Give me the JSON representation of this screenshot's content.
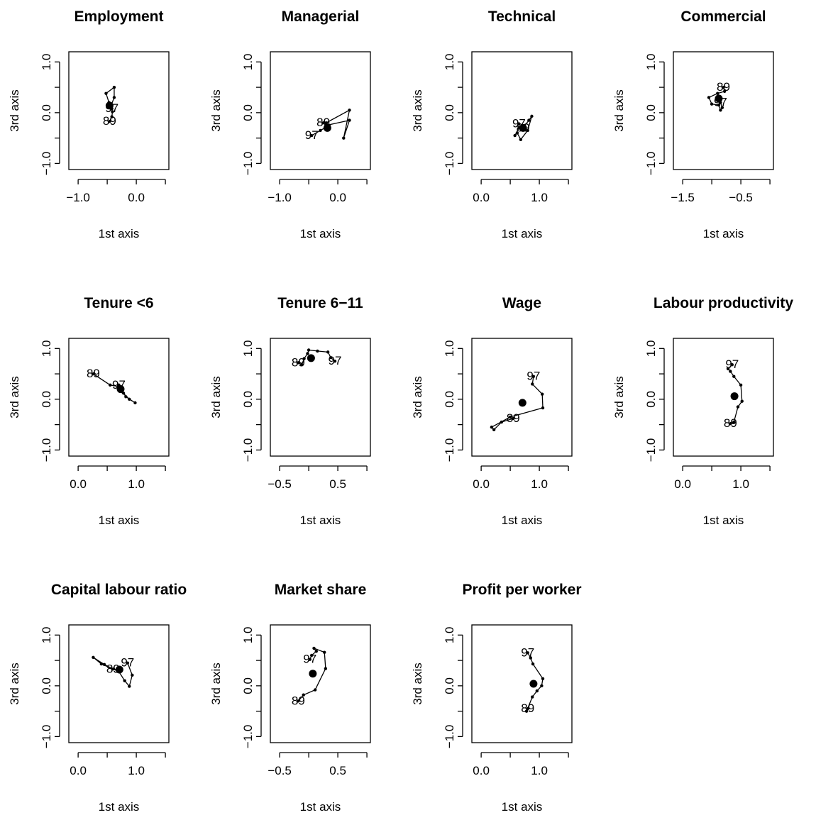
{
  "chart_data": [
    {
      "type": "line",
      "title": "Employment",
      "xlabel": "1st axis",
      "ylabel": "3rd axis",
      "x": [
        -0.46,
        -0.42,
        -0.41,
        -0.44,
        -0.38,
        -0.38,
        -0.52,
        -0.47,
        -0.42
      ],
      "y": [
        -0.17,
        -0.08,
        0.02,
        0.12,
        0.3,
        0.5,
        0.38,
        0.2,
        0.08
      ],
      "point_labels": [
        "89",
        null,
        null,
        null,
        null,
        null,
        null,
        null,
        "97"
      ],
      "centroid": {
        "x": -0.46,
        "y": 0.14
      },
      "xlim": [
        -1.16,
        0.56
      ],
      "ylim": [
        -1.12,
        1.2
      ],
      "xticks": [
        {
          "value": -1,
          "label": "−1.0"
        },
        {
          "value": 0,
          "label": "0.0"
        }
      ],
      "xminor": [
        -0.5,
        0.5
      ],
      "yticks": [
        {
          "value": -1,
          "label": "−1.0"
        },
        {
          "value": 0,
          "label": "0.0"
        },
        {
          "value": 1,
          "label": "1.0"
        }
      ],
      "yminor": [
        -0.5,
        0.5
      ]
    },
    {
      "type": "line",
      "title": "Managerial",
      "xlabel": "1st axis",
      "ylabel": "3rd axis",
      "x": [
        -0.25,
        -0.2,
        0.2,
        0.1,
        0.2,
        -0.2,
        -0.15,
        -0.3,
        -0.45
      ],
      "y": [
        -0.2,
        -0.25,
        -0.15,
        -0.5,
        0.05,
        -0.2,
        -0.25,
        -0.35,
        -0.45
      ],
      "point_labels": [
        "89",
        null,
        null,
        null,
        null,
        null,
        null,
        null,
        "97"
      ],
      "centroid": {
        "x": -0.18,
        "y": -0.3
      },
      "xlim": [
        -1.16,
        0.56
      ],
      "ylim": [
        -1.12,
        1.2
      ],
      "xticks": [
        {
          "value": -1,
          "label": "−1.0"
        },
        {
          "value": 0,
          "label": "0.0"
        }
      ],
      "xminor": [
        -0.5,
        0.5
      ],
      "yticks": [
        {
          "value": -1,
          "label": "−1.0"
        },
        {
          "value": 0,
          "label": "0.0"
        },
        {
          "value": 1,
          "label": "1.0"
        }
      ],
      "yminor": [
        -0.5,
        0.5
      ]
    },
    {
      "type": "line",
      "title": "Technical",
      "xlabel": "1st axis",
      "ylabel": "3rd axis",
      "x": [
        0.72,
        0.82,
        0.87,
        0.8,
        0.68,
        0.62,
        0.58,
        0.65,
        0.65
      ],
      "y": [
        -0.3,
        -0.15,
        -0.07,
        -0.35,
        -0.53,
        -0.4,
        -0.45,
        -0.3,
        -0.22
      ],
      "point_labels": [
        "89",
        null,
        null,
        null,
        null,
        null,
        null,
        null,
        "97"
      ],
      "centroid": {
        "x": 0.72,
        "y": -0.3
      },
      "xlim": [
        -0.16,
        1.56
      ],
      "ylim": [
        -1.12,
        1.2
      ],
      "xticks": [
        {
          "value": 0,
          "label": "0.0"
        },
        {
          "value": 1,
          "label": "1.0"
        }
      ],
      "xminor": [
        0.5,
        1.5
      ],
      "yticks": [
        {
          "value": -1,
          "label": "−1.0"
        },
        {
          "value": 0,
          "label": "0.0"
        },
        {
          "value": 1,
          "label": "1.0"
        }
      ],
      "yminor": [
        -0.5,
        0.5
      ]
    },
    {
      "type": "line",
      "title": "Commercial",
      "xlabel": "1st axis",
      "ylabel": "3rd axis",
      "x": [
        -0.8,
        -0.78,
        -0.9,
        -1.05,
        -1.0,
        -0.88,
        -0.85,
        -0.82,
        -0.85
      ],
      "y": [
        0.5,
        0.42,
        0.38,
        0.3,
        0.17,
        0.15,
        0.05,
        0.1,
        0.2
      ],
      "point_labels": [
        "89",
        null,
        null,
        null,
        null,
        null,
        null,
        null,
        "97"
      ],
      "centroid": {
        "x": -0.88,
        "y": 0.28
      },
      "xlim": [
        -1.66,
        0.06
      ],
      "ylim": [
        -1.12,
        1.2
      ],
      "xticks": [
        {
          "value": -1.5,
          "label": "−1.5"
        },
        {
          "value": -0.5,
          "label": "−0.5"
        }
      ],
      "xminor": [
        -1,
        0
      ],
      "yticks": [
        {
          "value": -1,
          "label": "−1.0"
        },
        {
          "value": 0,
          "label": "0.0"
        },
        {
          "value": 1,
          "label": "1.0"
        }
      ],
      "yminor": [
        -0.5,
        0.5
      ]
    },
    {
      "type": "line",
      "title": "Tenure <6",
      "xlabel": "1st axis",
      "ylabel": "3rd axis",
      "x": [
        0.26,
        0.55,
        0.7,
        0.78,
        0.82,
        0.98,
        0.88,
        0.75,
        0.7
      ],
      "y": [
        0.5,
        0.28,
        0.25,
        0.12,
        0.05,
        -0.07,
        0.0,
        0.15,
        0.28
      ],
      "point_labels": [
        "89",
        null,
        null,
        null,
        null,
        null,
        null,
        null,
        "97"
      ],
      "centroid": {
        "x": 0.73,
        "y": 0.2
      },
      "xlim": [
        -0.16,
        1.56
      ],
      "ylim": [
        -1.12,
        1.2
      ],
      "xticks": [
        {
          "value": 0,
          "label": "0.0"
        },
        {
          "value": 1,
          "label": "1.0"
        }
      ],
      "xminor": [
        0.5,
        1.5
      ],
      "yticks": [
        {
          "value": -1,
          "label": "−1.0"
        },
        {
          "value": 0,
          "label": "0.0"
        },
        {
          "value": 1,
          "label": "1.0"
        }
      ],
      "yminor": [
        -0.5,
        0.5
      ]
    },
    {
      "type": "line",
      "title": "Tenure 6−11",
      "xlabel": "1st axis",
      "ylabel": "3rd axis",
      "x": [
        -0.18,
        -0.12,
        -0.08,
        -0.02,
        0.0,
        0.15,
        0.33,
        0.38,
        0.45
      ],
      "y": [
        0.72,
        0.68,
        0.8,
        0.9,
        0.97,
        0.95,
        0.93,
        0.82,
        0.75
      ],
      "point_labels": [
        "89",
        null,
        null,
        null,
        null,
        null,
        null,
        null,
        "97"
      ],
      "centroid": {
        "x": 0.04,
        "y": 0.81
      },
      "xlim": [
        -0.66,
        1.06
      ],
      "ylim": [
        -1.12,
        1.2
      ],
      "xticks": [
        {
          "value": -0.5,
          "label": "−0.5"
        },
        0.5
      ],
      "xminor": [
        0,
        1
      ],
      "yticks": [
        {
          "value": -1,
          "label": "−1.0"
        },
        {
          "value": 0,
          "label": "0.0"
        },
        {
          "value": 1,
          "label": "1.0"
        }
      ],
      "yminor": [
        -0.5,
        0.5
      ]
    },
    {
      "type": "line",
      "title": "Wage",
      "xlabel": "1st axis",
      "ylabel": "3rd axis",
      "x": [
        0.55,
        0.35,
        0.22,
        0.18,
        0.5,
        1.06,
        1.05,
        0.88,
        0.9
      ],
      "y": [
        -0.38,
        -0.45,
        -0.6,
        -0.55,
        -0.35,
        -0.17,
        0.1,
        0.3,
        0.45
      ],
      "point_labels": [
        "89",
        null,
        null,
        null,
        null,
        null,
        null,
        null,
        "97"
      ],
      "centroid": {
        "x": 0.71,
        "y": -0.07
      },
      "xlim": [
        -0.16,
        1.56
      ],
      "ylim": [
        -1.12,
        1.2
      ],
      "xticks": [
        {
          "value": 0,
          "label": "0.0"
        },
        {
          "value": 1,
          "label": "1.0"
        }
      ],
      "xminor": [
        0.5,
        1.5
      ],
      "yticks": [
        {
          "value": -1,
          "label": "−1.0"
        },
        {
          "value": 0,
          "label": "0.0"
        },
        {
          "value": 1,
          "label": "1.0"
        }
      ],
      "yminor": [
        -0.5,
        0.5
      ]
    },
    {
      "type": "line",
      "title": "Labour productivity",
      "xlabel": "1st axis",
      "ylabel": "3rd axis",
      "x": [
        0.82,
        0.88,
        0.95,
        1.02,
        1.0,
        0.88,
        0.82,
        0.78,
        0.85
      ],
      "y": [
        -0.48,
        -0.45,
        -0.15,
        -0.04,
        0.28,
        0.45,
        0.55,
        0.6,
        0.68
      ],
      "point_labels": [
        "89",
        null,
        null,
        null,
        null,
        null,
        null,
        null,
        "97"
      ],
      "centroid": {
        "x": 0.89,
        "y": 0.06
      },
      "xlim": [
        -0.16,
        1.56
      ],
      "ylim": [
        -1.12,
        1.2
      ],
      "xticks": [
        {
          "value": 0,
          "label": "0.0"
        },
        {
          "value": 1,
          "label": "1.0"
        }
      ],
      "xminor": [
        0.5,
        1.5
      ],
      "yticks": [
        {
          "value": -1,
          "label": "−1.0"
        },
        {
          "value": 0,
          "label": "0.0"
        },
        {
          "value": 1,
          "label": "1.0"
        }
      ],
      "yminor": [
        -0.5,
        0.5
      ]
    },
    {
      "type": "line",
      "title": "Capital labour ratio",
      "xlabel": "1st axis",
      "ylabel": "3rd axis",
      "x": [
        0.6,
        0.45,
        0.26,
        0.4,
        0.7,
        0.8,
        0.88,
        0.93,
        0.85
      ],
      "y": [
        0.33,
        0.42,
        0.56,
        0.43,
        0.28,
        0.1,
        -0.01,
        0.21,
        0.45
      ],
      "point_labels": [
        "89",
        null,
        null,
        null,
        null,
        null,
        null,
        null,
        "97"
      ],
      "centroid": {
        "x": 0.71,
        "y": 0.32
      },
      "xlim": [
        -0.16,
        1.56
      ],
      "ylim": [
        -1.12,
        1.2
      ],
      "xticks": [
        {
          "value": 0,
          "label": "0.0"
        },
        {
          "value": 1,
          "label": "1.0"
        }
      ],
      "xminor": [
        0.5,
        1.5
      ],
      "yticks": [
        {
          "value": -1,
          "label": "−1.0"
        },
        {
          "value": 0,
          "label": "0.0"
        },
        {
          "value": 1,
          "label": "1.0"
        }
      ],
      "yminor": [
        -0.5,
        0.5
      ]
    },
    {
      "type": "line",
      "title": "Market share",
      "xlabel": "1st axis",
      "ylabel": "3rd axis",
      "x": [
        -0.18,
        -0.09,
        0.11,
        0.29,
        0.27,
        0.09,
        0.13,
        0.05,
        0.02
      ],
      "y": [
        -0.3,
        -0.18,
        -0.08,
        0.34,
        0.66,
        0.74,
        0.68,
        0.6,
        0.52
      ],
      "point_labels": [
        "89",
        null,
        null,
        null,
        null,
        null,
        null,
        null,
        "97"
      ],
      "centroid": {
        "x": 0.07,
        "y": 0.24
      },
      "xlim": [
        -0.66,
        1.06
      ],
      "ylim": [
        -1.12,
        1.2
      ],
      "xticks": [
        {
          "value": -0.5,
          "label": "−0.5"
        },
        0.5
      ],
      "xminor": [
        0,
        1
      ],
      "yticks": [
        {
          "value": -1,
          "label": "−1.0"
        },
        {
          "value": 0,
          "label": "0.0"
        },
        {
          "value": 1,
          "label": "1.0"
        }
      ],
      "yminor": [
        -0.5,
        0.5
      ]
    },
    {
      "type": "line",
      "title": "Profit per worker",
      "xlabel": "1st axis",
      "ylabel": "3rd axis",
      "x": [
        0.8,
        0.78,
        0.88,
        0.96,
        1.04,
        1.06,
        0.89,
        0.85,
        0.8
      ],
      "y": [
        -0.45,
        -0.5,
        -0.22,
        -0.1,
        0.0,
        0.14,
        0.43,
        0.55,
        0.65
      ],
      "point_labels": [
        "89",
        null,
        null,
        null,
        null,
        null,
        null,
        null,
        "97"
      ],
      "centroid": {
        "x": 0.9,
        "y": 0.04
      },
      "xlim": [
        -0.16,
        1.56
      ],
      "ylim": [
        -1.12,
        1.2
      ],
      "xticks": [
        {
          "value": 0,
          "label": "0.0"
        },
        {
          "value": 1,
          "label": "1.0"
        }
      ],
      "xminor": [
        0.5,
        1.5
      ],
      "yticks": [
        {
          "value": -1,
          "label": "−1.0"
        },
        {
          "value": 0,
          "label": "0.0"
        },
        {
          "value": 1,
          "label": "1.0"
        }
      ],
      "yminor": [
        -0.5,
        0.5
      ]
    }
  ]
}
